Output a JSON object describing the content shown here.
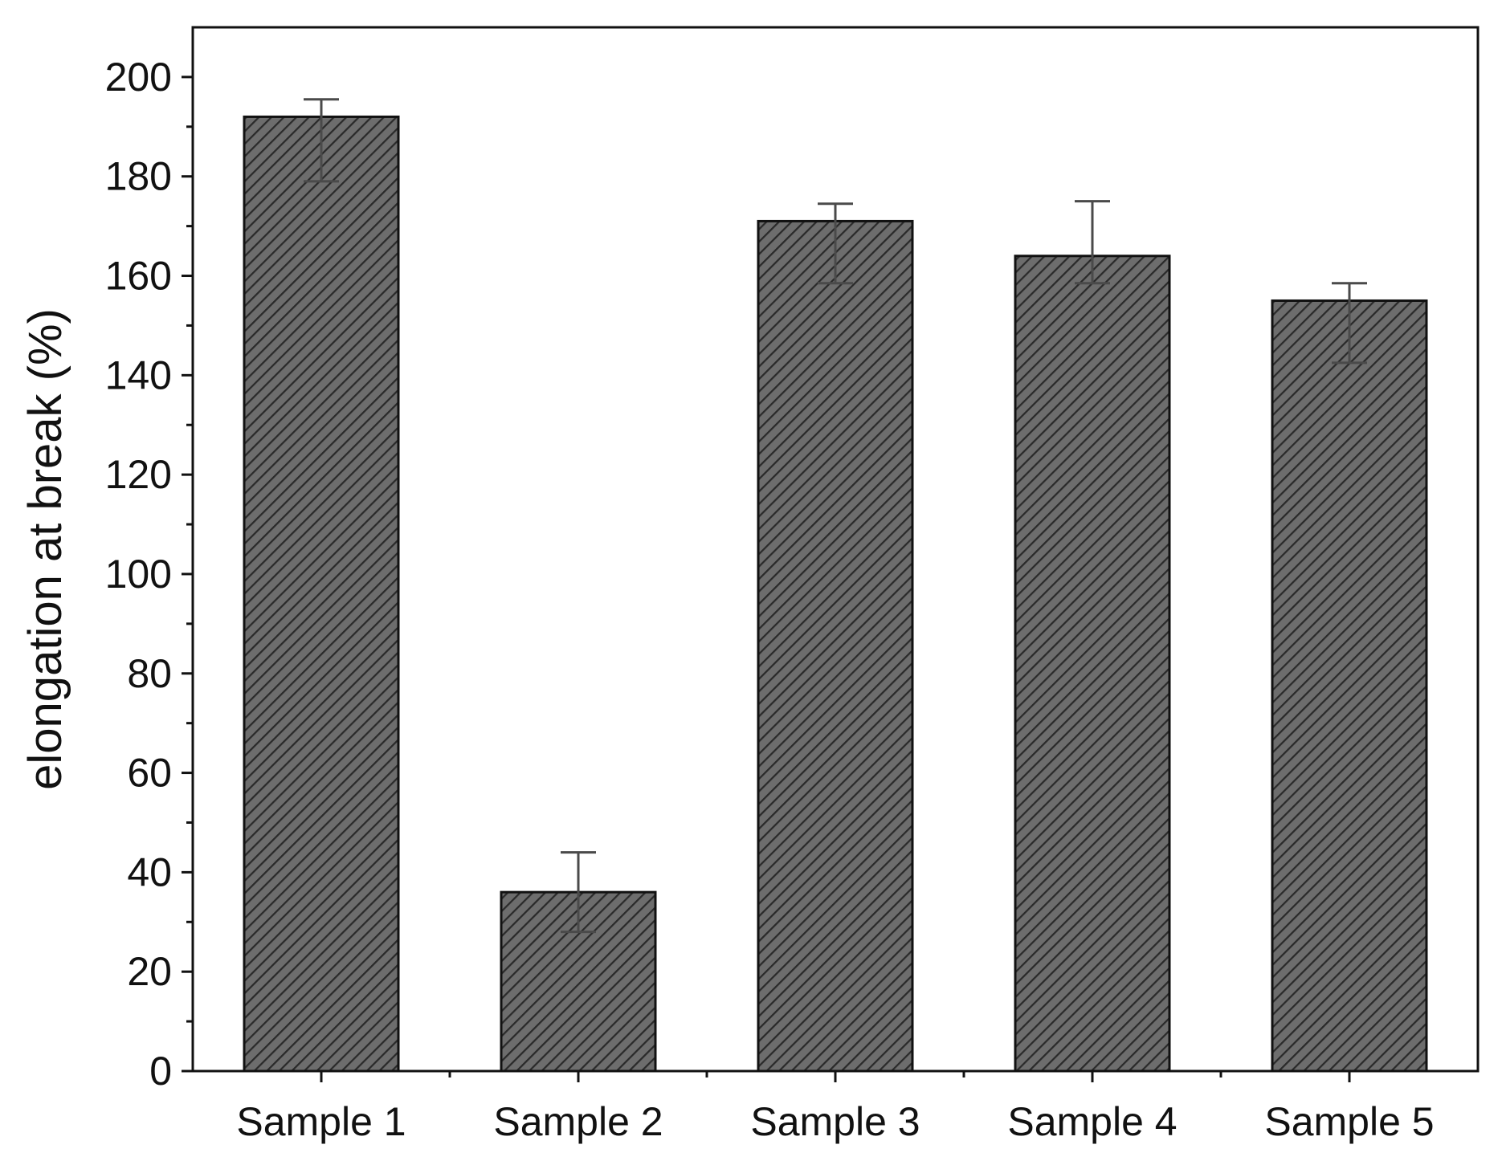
{
  "chart_data": {
    "type": "bar",
    "title": "",
    "xlabel": "",
    "ylabel": "elongation at break (%)",
    "ylim": [
      0,
      210
    ],
    "yticks": [
      0,
      20,
      40,
      60,
      80,
      100,
      120,
      140,
      160,
      180,
      200
    ],
    "categories": [
      "Sample 1",
      "Sample 2",
      "Sample 3",
      "Sample 4",
      "Sample 5"
    ],
    "values": [
      192,
      36,
      171,
      164,
      155
    ],
    "error_upper": [
      195.5,
      44,
      174.5,
      175,
      158.5
    ],
    "error_lower": [
      179,
      28,
      158.5,
      158.5,
      142.5
    ],
    "bar_fill": "#6d6d6d",
    "bar_hatch": "#2a2a2a",
    "error_color": "#4a4a4a",
    "axis_color": "#111111",
    "grid": false,
    "legend": "none"
  }
}
